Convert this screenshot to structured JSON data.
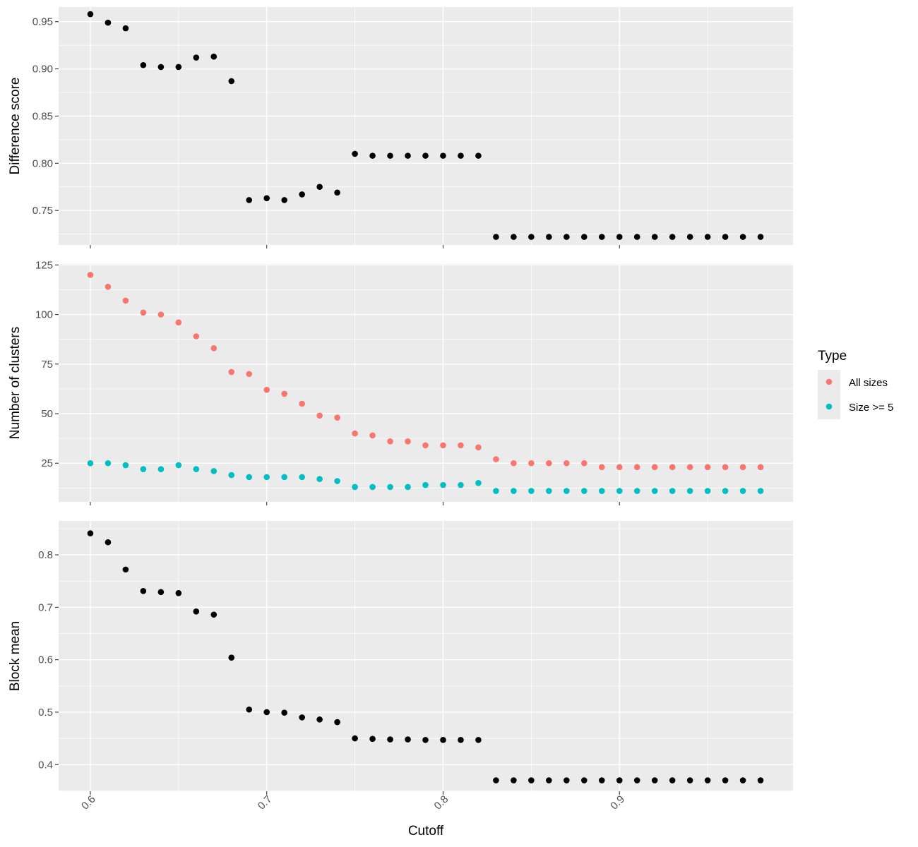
{
  "chart_data": {
    "type": "scatter",
    "x_axis": {
      "title": "Cutoff",
      "range": [
        0.582,
        0.9984
      ],
      "ticks": [
        0.6,
        0.7,
        0.8,
        0.9
      ],
      "tick_labels": [
        "0.6",
        "0.7",
        "0.8",
        "0.9"
      ],
      "tick_label_rotation": -45
    },
    "x": [
      0.6,
      0.61,
      0.62,
      0.63,
      0.64,
      0.65,
      0.66,
      0.67,
      0.68,
      0.69,
      0.7,
      0.71,
      0.72,
      0.73,
      0.74,
      0.75,
      0.76,
      0.77,
      0.78,
      0.79,
      0.8,
      0.81,
      0.82,
      0.83,
      0.84,
      0.85,
      0.86,
      0.87,
      0.88,
      0.89,
      0.9,
      0.91,
      0.92,
      0.93,
      0.94,
      0.95,
      0.96,
      0.97,
      0.98
    ],
    "grid": true,
    "legend": {
      "title": "Type",
      "placement": "right",
      "entries": [
        {
          "label": "All sizes",
          "color": "#F8766D"
        },
        {
          "label": "Size >= 5",
          "color": "#00BFC4"
        }
      ]
    },
    "panels": [
      {
        "ylabel": "Difference score",
        "ylim": [
          0.7135,
          0.9655
        ],
        "yticks": [
          0.75,
          0.8,
          0.85,
          0.9,
          0.95
        ],
        "ytick_labels": [
          "0.75",
          "0.80",
          "0.85",
          "0.90",
          "0.95"
        ],
        "series": [
          {
            "color": "#000000",
            "values": [
              0.958,
              0.949,
              0.943,
              0.904,
              0.902,
              0.902,
              0.912,
              0.913,
              0.887,
              0.761,
              0.763,
              0.761,
              0.767,
              0.775,
              0.769,
              0.81,
              0.808,
              0.808,
              0.808,
              0.808,
              0.808,
              0.808,
              0.808,
              0.722,
              0.722,
              0.722,
              0.722,
              0.722,
              0.722,
              0.722,
              0.722,
              0.722,
              0.722,
              0.722,
              0.722,
              0.722,
              0.722,
              0.722,
              0.722
            ]
          }
        ]
      },
      {
        "ylabel": "Number of clusters",
        "ylim": [
          5.5,
          125.5
        ],
        "yticks": [
          25,
          50,
          75,
          100,
          125
        ],
        "ytick_labels": [
          "25",
          "50",
          "75",
          "100",
          "125"
        ],
        "series": [
          {
            "name": "All sizes",
            "color": "#F8766D",
            "values": [
              120,
              114,
              107,
              101,
              100,
              96,
              89,
              83,
              71,
              70,
              62,
              60,
              55,
              49,
              48,
              40,
              39,
              36,
              36,
              34,
              34,
              34,
              33,
              27,
              25,
              25,
              25,
              25,
              25,
              23,
              23,
              23,
              23,
              23,
              23,
              23,
              23,
              23,
              23
            ]
          },
          {
            "name": "Size >= 5",
            "color": "#00BFC4",
            "values": [
              25,
              25,
              24,
              22,
              22,
              24,
              22,
              21,
              19,
              18,
              18,
              18,
              18,
              17,
              16,
              13,
              13,
              13,
              13,
              14,
              14,
              14,
              15,
              11,
              11,
              11,
              11,
              11,
              11,
              11,
              11,
              11,
              11,
              11,
              11,
              11,
              11,
              11,
              11
            ]
          }
        ]
      },
      {
        "ylabel": "Block mean",
        "ylim": [
          0.3492,
          0.8647
        ],
        "yticks": [
          0.4,
          0.5,
          0.6,
          0.7,
          0.8
        ],
        "ytick_labels": [
          "0.4",
          "0.5",
          "0.6",
          "0.7",
          "0.8"
        ],
        "series": [
          {
            "color": "#000000",
            "values": [
              0.841,
              0.824,
              0.772,
              0.731,
              0.729,
              0.727,
              0.692,
              0.686,
              0.604,
              0.505,
              0.5,
              0.499,
              0.49,
              0.486,
              0.481,
              0.45,
              0.449,
              0.448,
              0.448,
              0.447,
              0.447,
              0.447,
              0.447,
              0.37,
              0.37,
              0.37,
              0.37,
              0.37,
              0.37,
              0.37,
              0.37,
              0.37,
              0.37,
              0.37,
              0.37,
              0.37,
              0.37,
              0.37,
              0.37
            ]
          }
        ]
      }
    ]
  }
}
